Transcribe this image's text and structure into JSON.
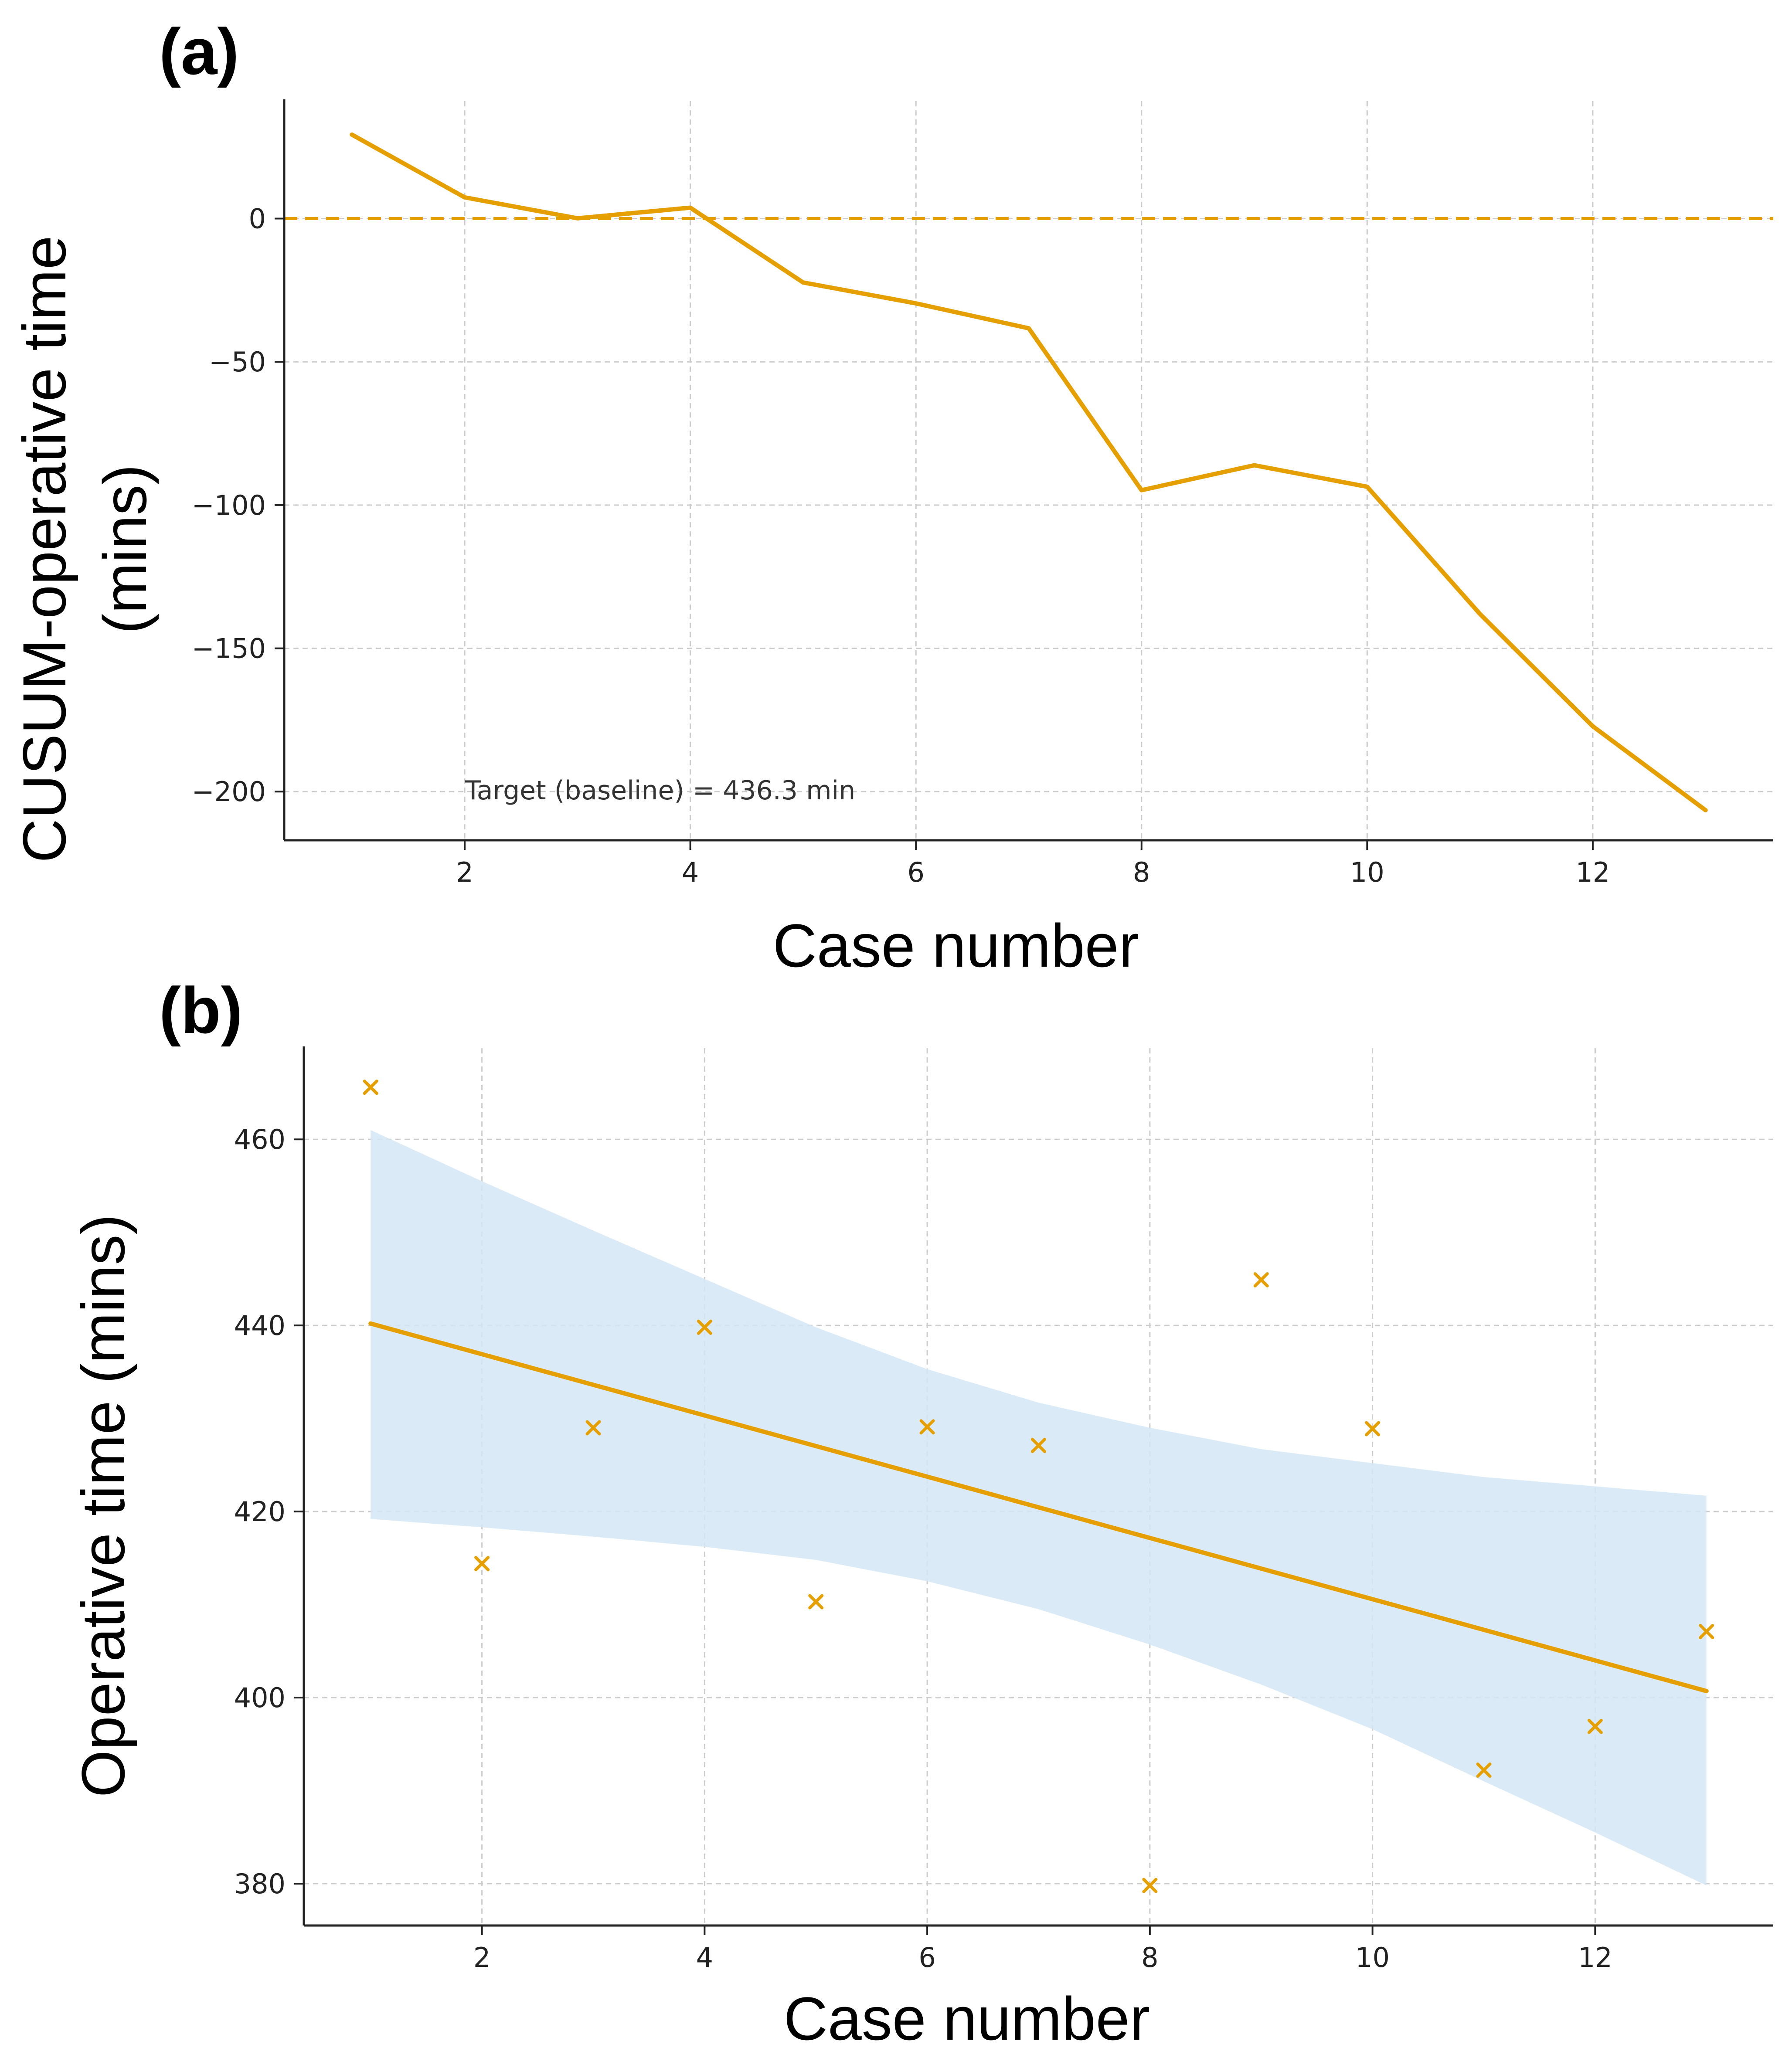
{
  "chart_data": [
    {
      "panel": "(a)",
      "type": "line",
      "title": "",
      "xlabel": "Case number",
      "ylabel": [
        "CUSUM-operative time",
        "(mins)"
      ],
      "xlim": [
        0.4,
        13.6
      ],
      "ylim": [
        -217,
        41
      ],
      "xticks": [
        2,
        4,
        6,
        8,
        10,
        12
      ],
      "yticks": [
        0,
        -50,
        -100,
        -150,
        -200
      ],
      "ytick_labels": [
        "0",
        "−50",
        "−100",
        "−150",
        "−200"
      ],
      "grid": true,
      "series": [
        {
          "name": "CUSUM",
          "color": "#E69F00",
          "x": [
            1,
            2,
            3,
            4,
            5,
            6,
            7,
            8,
            9,
            10,
            11,
            12,
            13
          ],
          "values": [
            29.3,
            7.4,
            0.1,
            3.8,
            -22.3,
            -29.6,
            -38.3,
            -94.8,
            -86.1,
            -93.6,
            -138.0,
            -177.2,
            -206.5
          ]
        }
      ],
      "reference_line": {
        "y": 0,
        "style": "dashed",
        "color": "#E69F00"
      },
      "annotation": "Target (baseline) = 436.3 min"
    },
    {
      "panel": "(b)",
      "type": "scatter",
      "title": "",
      "xlabel": "Case number",
      "ylabel": "Operative time (mins)",
      "xlim": [
        0.4,
        13.6
      ],
      "ylim": [
        375.5,
        469.8
      ],
      "xticks": [
        2,
        4,
        6,
        8,
        10,
        12
      ],
      "yticks": [
        380,
        400,
        420,
        440,
        460
      ],
      "grid": true,
      "series": [
        {
          "name": "Operative time",
          "marker": "x",
          "color": "#E69F00",
          "x": [
            1,
            2,
            3,
            4,
            5,
            6,
            7,
            8,
            9,
            10,
            11,
            12,
            13
          ],
          "values": [
            465.6,
            414.4,
            429.0,
            439.8,
            410.3,
            429.1,
            427.1,
            379.8,
            444.9,
            428.9,
            392.2,
            396.9,
            407.1
          ]
        }
      ],
      "regression_line": {
        "x": [
          1,
          13
        ],
        "y": [
          440.2,
          400.7
        ],
        "color": "#E69F00"
      },
      "confidence_band": {
        "color": "#D4E8F6",
        "x": [
          1,
          2,
          3,
          4,
          5,
          6,
          7,
          8,
          9,
          10,
          11,
          12,
          13
        ],
        "upper": [
          461.0,
          455.5,
          450.2,
          445.0,
          439.8,
          435.3,
          431.7,
          429.0,
          426.7,
          425.2,
          423.7,
          422.7,
          421.7
        ],
        "lower": [
          419.2,
          418.3,
          417.3,
          416.2,
          414.8,
          412.5,
          409.5,
          405.7,
          401.4,
          396.6,
          391.0,
          385.5,
          379.8
        ]
      }
    }
  ]
}
